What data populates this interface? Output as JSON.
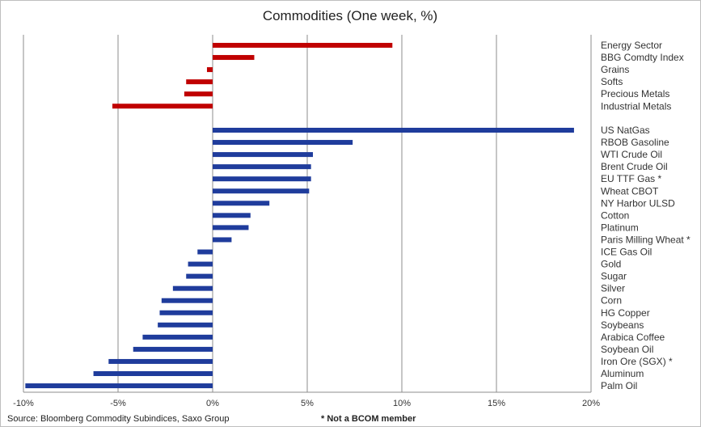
{
  "chart_data": {
    "type": "bar",
    "orientation": "horizontal",
    "title": "Commodities (One week, %)",
    "xlim": [
      -10,
      20
    ],
    "xticks": [
      -10,
      -5,
      0,
      5,
      10,
      15,
      20
    ],
    "xtick_labels": [
      "-10%",
      "-5%",
      "0%",
      "5%",
      "10%",
      "15%",
      "20%"
    ],
    "grid": "vertical",
    "categories": [
      "Energy Sector",
      "BBG Comdty Index",
      "Grains",
      "Softs",
      "Precious Metals",
      "Industrial Metals",
      "US NatGas",
      "RBOB Gasoline",
      "WTI Crude Oil",
      "Brent Crude Oil",
      "EU TTF Gas *",
      "Wheat CBOT",
      "NY Harbor ULSD",
      "Cotton",
      "Platinum",
      "Paris Milling Wheat *",
      "ICE Gas Oil",
      "Gold",
      "Sugar",
      "Silver",
      "Corn",
      "HG Copper",
      "Soybeans",
      "Arabica Coffee",
      "Soybean Oil",
      "Iron Ore (SGX) *",
      "Aluminum",
      "Palm Oil"
    ],
    "values": [
      9.5,
      2.2,
      -0.3,
      -1.4,
      -1.5,
      -5.3,
      19.1,
      7.4,
      5.3,
      5.2,
      5.2,
      5.1,
      3.0,
      2.0,
      1.9,
      1.0,
      -0.8,
      -1.3,
      -1.4,
      -2.1,
      -2.7,
      -2.8,
      -2.9,
      -3.7,
      -4.2,
      -5.5,
      -6.3,
      -9.9
    ],
    "groups": [
      {
        "start": 0,
        "count": 6,
        "color": "#c00000"
      },
      {
        "start": 6,
        "count": 22,
        "color": "#1f3c9c"
      }
    ]
  },
  "footer": {
    "source": "Source: Bloomberg Commodity Subindices, Saxo Group",
    "note": "* Not a BCOM member"
  }
}
